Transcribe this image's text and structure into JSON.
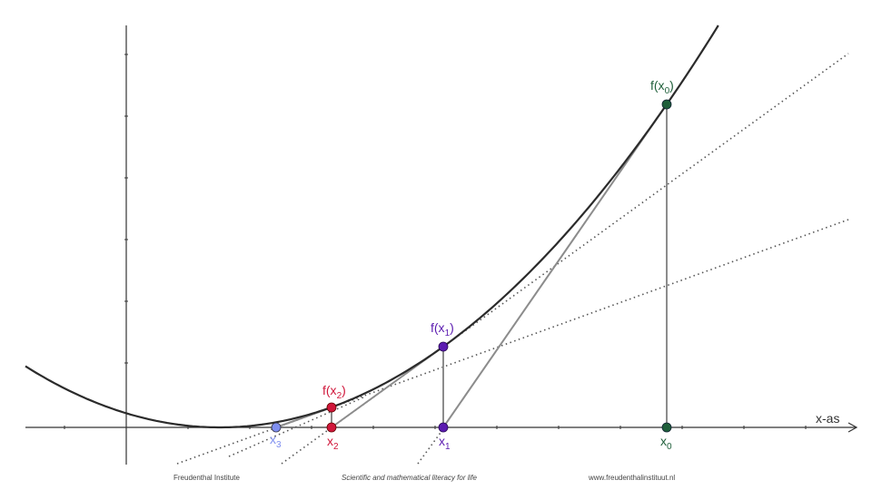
{
  "colors": {
    "curve": "#2b2b2b",
    "axis": "#333333",
    "segment": "#8c8c8c",
    "tangent": "#555555",
    "x0": "#1f5f3a",
    "x1": "#5b1bb0",
    "x2": "#d0173b",
    "x3": "#7f8ff0"
  },
  "axis": {
    "x_label": "x-as"
  },
  "points": {
    "fx0": {
      "main": "f(x",
      "sub": "0",
      "close": ")"
    },
    "x0": {
      "main": "x",
      "sub": "0"
    },
    "fx1": {
      "main": "f(x",
      "sub": "1",
      "close": ")"
    },
    "x1": {
      "main": "x",
      "sub": "1"
    },
    "fx2": {
      "main": "f(x",
      "sub": "2",
      "close": ")"
    },
    "x2": {
      "main": "x",
      "sub": "2"
    },
    "x3": {
      "main": "x",
      "sub": "3"
    }
  },
  "footer": {
    "left": "Freudenthal Institute",
    "center": "Scientific and mathematical literacy for life",
    "right": "www.freudenthalinstituut.nl"
  }
}
